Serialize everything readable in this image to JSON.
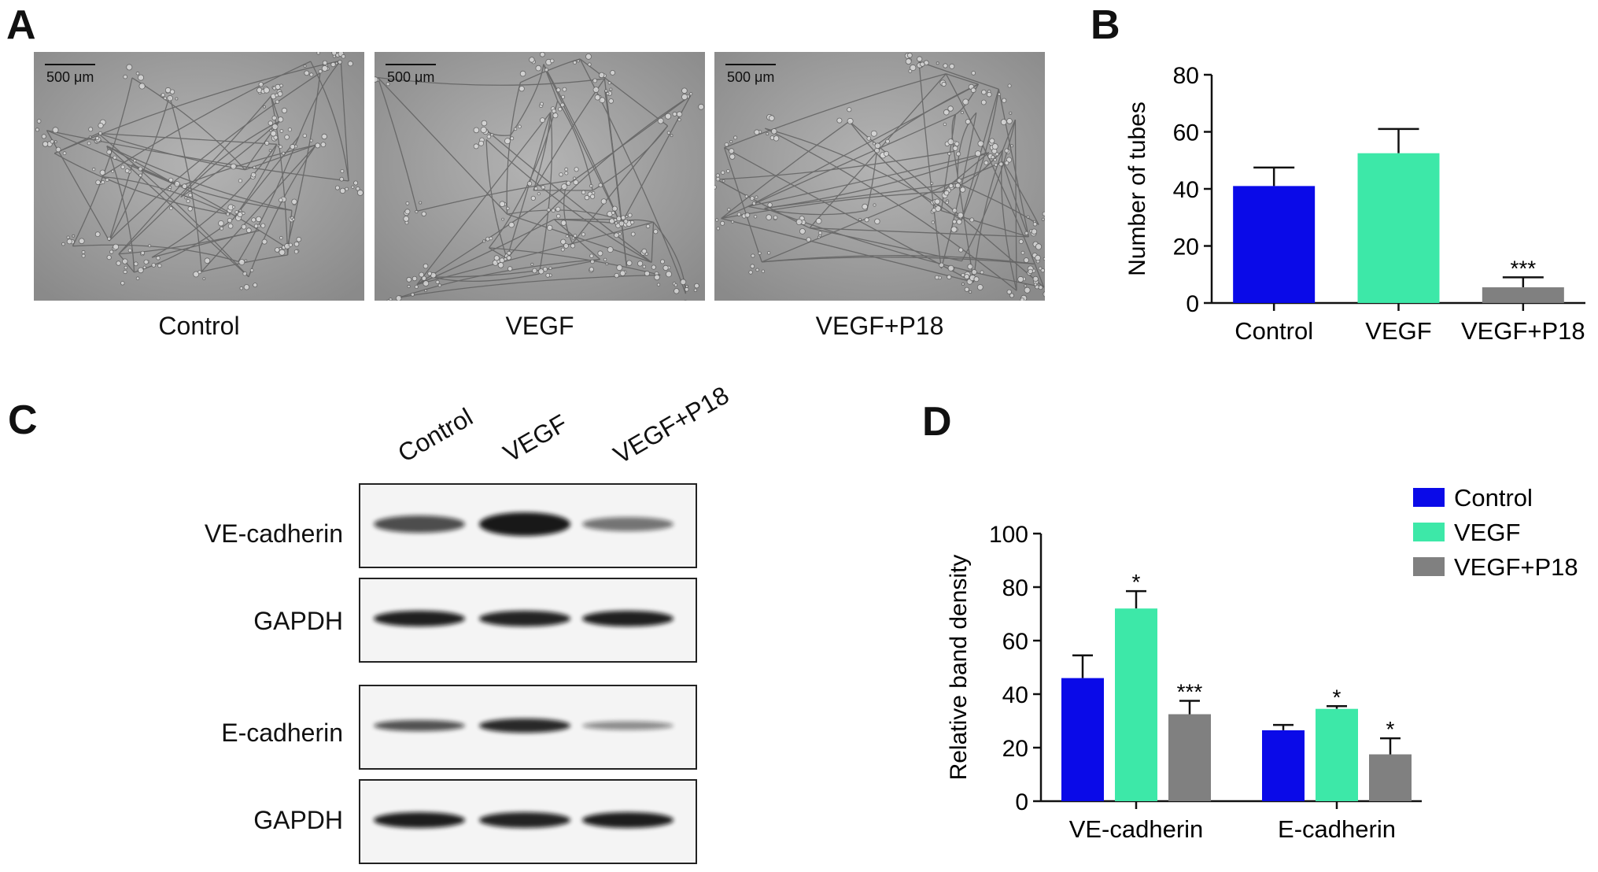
{
  "panels": {
    "A": {
      "letter": "A",
      "images": [
        {
          "label": "Control",
          "scale": "500 μm"
        },
        {
          "label": "VEGF",
          "scale": "500 μm"
        },
        {
          "label": "VEGF+P18",
          "scale": "500 μm"
        }
      ]
    },
    "B": {
      "letter": "B"
    },
    "C": {
      "letter": "C",
      "lanes": [
        "Control",
        "VEGF",
        "VEGF+P18"
      ],
      "rows": [
        {
          "label": "VE-cadherin",
          "intensities": [
            0.72,
            0.95,
            0.55
          ]
        },
        {
          "label": "GAPDH",
          "intensities": [
            0.92,
            0.9,
            0.92
          ]
        },
        {
          "label": "E-cadherin",
          "intensities": [
            0.7,
            0.88,
            0.45
          ]
        },
        {
          "label": "GAPDH",
          "intensities": [
            0.93,
            0.9,
            0.93
          ]
        }
      ]
    },
    "D": {
      "letter": "D"
    }
  },
  "colors": {
    "control": "#0a0ae8",
    "vegf": "#3de8a8",
    "vegf_p18": "#808080"
  },
  "chart_data": [
    {
      "type": "bar",
      "panel": "B",
      "categories": [
        "Control",
        "VEGF",
        "VEGF+P18"
      ],
      "values": [
        41,
        52.5,
        5.5
      ],
      "errors": [
        6.5,
        8.5,
        3.5
      ],
      "significance": [
        "",
        "",
        "***"
      ],
      "ylabel": "Number of tubes",
      "ylim": [
        0,
        80
      ],
      "yticks": [
        0,
        20,
        40,
        60,
        80
      ]
    },
    {
      "type": "bar",
      "panel": "D",
      "categories": [
        "VE-cadherin",
        "E-cadherin"
      ],
      "series": [
        {
          "name": "Control",
          "values": [
            46,
            26.5
          ],
          "errors": [
            8.5,
            2
          ],
          "significance": [
            "",
            ""
          ]
        },
        {
          "name": "VEGF",
          "values": [
            72,
            34.5
          ],
          "errors": [
            6.5,
            1
          ],
          "significance": [
            "*",
            "*"
          ]
        },
        {
          "name": "VEGF+P18",
          "values": [
            32.5,
            17.5
          ],
          "errors": [
            5,
            6
          ],
          "significance": [
            "***",
            "*"
          ]
        }
      ],
      "ylabel": "Relative band density",
      "ylim": [
        0,
        100
      ],
      "yticks": [
        0,
        20,
        40,
        60,
        80,
        100
      ],
      "legend": "top-right"
    }
  ]
}
